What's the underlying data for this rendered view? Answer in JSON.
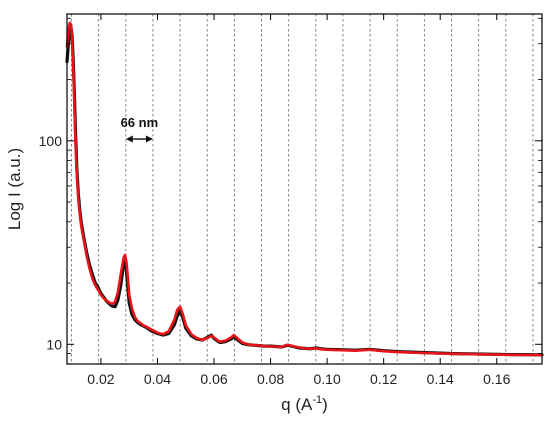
{
  "chart_data": {
    "type": "line",
    "xlabel": "q (A",
    "xlabel_sup": "-1",
    "xlabel_end": ")",
    "ylabel": "Log I (a.u.)",
    "y_scale": "log",
    "xlim": [
      0.008,
      0.176
    ],
    "ylim": [
      8,
      420
    ],
    "x_ticks": [
      0.02,
      0.04,
      0.06,
      0.08,
      0.1,
      0.12,
      0.14,
      0.16
    ],
    "x_tick_labels": [
      "0.02",
      "0.04",
      "0.06",
      "0.08",
      "0.10",
      "0.12",
      "0.14",
      "0.16"
    ],
    "y_ticks": [
      10,
      100
    ],
    "y_tick_labels": [
      "10",
      "100"
    ],
    "dashed_gridlines_q": [
      0.0096,
      0.0192,
      0.0288,
      0.0384,
      0.048,
      0.0576,
      0.0672,
      0.0768,
      0.0864,
      0.096,
      0.1056,
      0.1152,
      0.1248,
      0.1344,
      0.144,
      0.1536,
      0.1632,
      0.1728
    ],
    "annotation": {
      "text": "66 nm",
      "x_from": 0.0288,
      "x_to": 0.0384,
      "y": 102
    },
    "series": [
      {
        "color": "#111111",
        "x": [
          0.008,
          0.0085,
          0.009,
          0.0095,
          0.0098,
          0.0102,
          0.0106,
          0.011,
          0.0115,
          0.012,
          0.0125,
          0.013,
          0.014,
          0.015,
          0.016,
          0.017,
          0.018,
          0.019,
          0.02,
          0.021,
          0.022,
          0.023,
          0.024,
          0.025,
          0.026,
          0.027,
          0.028,
          0.0285,
          0.029,
          0.0295,
          0.03,
          0.031,
          0.032,
          0.033,
          0.034,
          0.035,
          0.036,
          0.038,
          0.04,
          0.042,
          0.044,
          0.046,
          0.047,
          0.048,
          0.049,
          0.05,
          0.052,
          0.054,
          0.056,
          0.058,
          0.059,
          0.06,
          0.062,
          0.064,
          0.066,
          0.067,
          0.068,
          0.07,
          0.072,
          0.074,
          0.076,
          0.078,
          0.08,
          0.082,
          0.084,
          0.086,
          0.088,
          0.09,
          0.092,
          0.094,
          0.096,
          0.098,
          0.1,
          0.105,
          0.11,
          0.115,
          0.12,
          0.125,
          0.13,
          0.135,
          0.14,
          0.145,
          0.15,
          0.155,
          0.16,
          0.165,
          0.17,
          0.176
        ],
        "y": [
          245,
          300,
          340,
          355,
          330,
          250,
          170,
          110,
          72,
          55,
          46,
          40,
          33,
          28,
          24.5,
          22,
          20,
          19,
          17.8,
          17,
          16.3,
          15.8,
          15.4,
          15.3,
          16.5,
          19.5,
          24.5,
          25.5,
          23,
          19,
          16,
          14,
          13.2,
          12.8,
          12.5,
          12.3,
          12.1,
          11.6,
          11.3,
          11.1,
          11.3,
          12.5,
          13.8,
          14.6,
          13.5,
          12,
          11,
          10.6,
          10.5,
          10.9,
          11.1,
          10.7,
          10.2,
          10.3,
          10.6,
          10.9,
          10.6,
          10.1,
          9.95,
          9.9,
          9.85,
          9.8,
          9.8,
          9.75,
          9.7,
          9.9,
          9.75,
          9.6,
          9.55,
          9.5,
          9.6,
          9.5,
          9.45,
          9.4,
          9.35,
          9.45,
          9.3,
          9.2,
          9.15,
          9.1,
          9.05,
          9.0,
          8.98,
          8.95,
          8.93,
          8.9,
          8.9,
          8.88
        ]
      },
      {
        "color": "#e8141a",
        "x": [
          0.008,
          0.0085,
          0.009,
          0.0095,
          0.0098,
          0.0102,
          0.0106,
          0.011,
          0.0115,
          0.012,
          0.0125,
          0.013,
          0.014,
          0.015,
          0.016,
          0.017,
          0.018,
          0.019,
          0.02,
          0.021,
          0.022,
          0.023,
          0.024,
          0.025,
          0.026,
          0.027,
          0.028,
          0.0285,
          0.029,
          0.0295,
          0.03,
          0.031,
          0.032,
          0.033,
          0.034,
          0.035,
          0.036,
          0.038,
          0.04,
          0.042,
          0.044,
          0.046,
          0.047,
          0.048,
          0.049,
          0.05,
          0.052,
          0.054,
          0.056,
          0.058,
          0.059,
          0.06,
          0.062,
          0.064,
          0.066,
          0.067,
          0.068,
          0.07,
          0.072,
          0.074,
          0.076,
          0.078,
          0.08,
          0.082,
          0.084,
          0.086,
          0.088,
          0.09,
          0.092,
          0.094,
          0.096,
          0.098,
          0.1,
          0.105,
          0.11,
          0.115,
          0.12,
          0.125,
          0.13,
          0.135,
          0.14,
          0.145,
          0.15,
          0.155,
          0.16,
          0.165,
          0.17,
          0.176
        ],
        "y": [
          290,
          350,
          380,
          370,
          320,
          230,
          150,
          98,
          68,
          52,
          44,
          38.5,
          32,
          27,
          23.5,
          21,
          19.5,
          18.5,
          17.5,
          16.8,
          16.4,
          16,
          15.8,
          16.2,
          18,
          22,
          26.5,
          27.5,
          25.5,
          21.5,
          17.5,
          15,
          13.6,
          13,
          12.7,
          12.4,
          12.2,
          11.8,
          11.4,
          11.2,
          11.6,
          13.2,
          14.8,
          15.3,
          14,
          12.4,
          11.2,
          10.7,
          10.5,
          10.8,
          11.0,
          10.8,
          10.3,
          10.4,
          10.8,
          11.1,
          10.8,
          10.2,
          10.0,
          9.9,
          9.85,
          9.8,
          9.75,
          9.75,
          9.7,
          9.95,
          9.8,
          9.65,
          9.55,
          9.5,
          9.55,
          9.45,
          9.4,
          9.35,
          9.3,
          9.4,
          9.25,
          9.15,
          9.1,
          9.05,
          9.0,
          8.98,
          8.95,
          8.93,
          8.9,
          8.88,
          8.87,
          8.86
        ]
      }
    ]
  }
}
